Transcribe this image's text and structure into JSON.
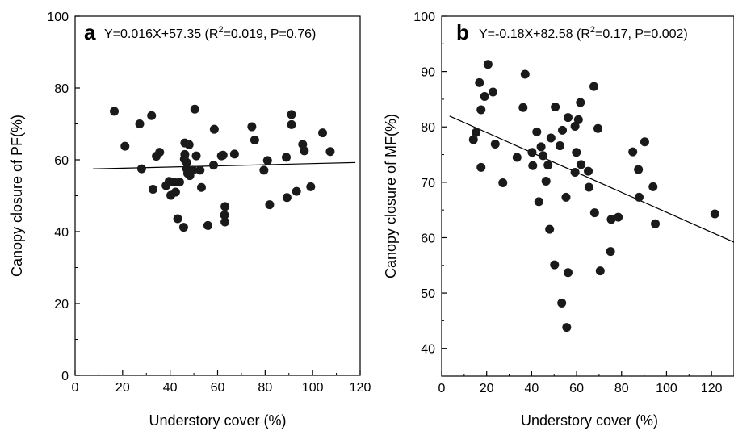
{
  "chart_data": [
    {
      "type": "scatter",
      "panel_label": "a",
      "equation": {
        "pre": "Y=0.016X+57.35 (R",
        "sup": "2",
        "post": "=0.019, P=0.76)"
      },
      "xlabel": "Understory cover (%)",
      "ylabel": "Canopy closure of PF(%)",
      "xlim": [
        0,
        120
      ],
      "ylim": [
        0,
        100
      ],
      "xticks": [
        "0",
        "20",
        "40",
        "60",
        "80",
        "100",
        "120"
      ],
      "yticks": [
        "0",
        "20",
        "40",
        "60",
        "80",
        "100"
      ],
      "grid": false,
      "fit_line": {
        "slope": 0.016,
        "intercept": 57.35,
        "x_range": [
          7.5,
          118
        ]
      },
      "points": [
        {
          "x": 16.5,
          "y": 73.5
        },
        {
          "x": 21,
          "y": 63.8
        },
        {
          "x": 27.2,
          "y": 70
        },
        {
          "x": 28,
          "y": 57.5
        },
        {
          "x": 32.2,
          "y": 72.3
        },
        {
          "x": 32.8,
          "y": 51.8
        },
        {
          "x": 34.2,
          "y": 61
        },
        {
          "x": 35.6,
          "y": 62.1
        },
        {
          "x": 38.3,
          "y": 52.8
        },
        {
          "x": 39.6,
          "y": 54
        },
        {
          "x": 40.3,
          "y": 50.1
        },
        {
          "x": 41.6,
          "y": 53.8
        },
        {
          "x": 42.3,
          "y": 51
        },
        {
          "x": 43.2,
          "y": 43.6
        },
        {
          "x": 44,
          "y": 53.8
        },
        {
          "x": 45.7,
          "y": 41.2
        },
        {
          "x": 46,
          "y": 60.2
        },
        {
          "x": 46.2,
          "y": 64.7
        },
        {
          "x": 46.2,
          "y": 61.5
        },
        {
          "x": 47,
          "y": 59.2
        },
        {
          "x": 47,
          "y": 57.5
        },
        {
          "x": 47.4,
          "y": 56.2
        },
        {
          "x": 48,
          "y": 64.2
        },
        {
          "x": 48.3,
          "y": 55.6
        },
        {
          "x": 49.6,
          "y": 57.1
        },
        {
          "x": 50.4,
          "y": 74.1
        },
        {
          "x": 51,
          "y": 61.1
        },
        {
          "x": 52.6,
          "y": 57.1
        },
        {
          "x": 53.2,
          "y": 52.3
        },
        {
          "x": 55.9,
          "y": 41.7
        },
        {
          "x": 58.3,
          "y": 58.5
        },
        {
          "x": 58.6,
          "y": 68.5
        },
        {
          "x": 61.6,
          "y": 61.1
        },
        {
          "x": 62.3,
          "y": 61.3
        },
        {
          "x": 62.9,
          "y": 44.6
        },
        {
          "x": 63.1,
          "y": 47
        },
        {
          "x": 63.1,
          "y": 42.7
        },
        {
          "x": 67.1,
          "y": 61.6
        },
        {
          "x": 74.4,
          "y": 69.2
        },
        {
          "x": 75.6,
          "y": 65.5
        },
        {
          "x": 79.5,
          "y": 57.1
        },
        {
          "x": 81,
          "y": 59.8
        },
        {
          "x": 81.9,
          "y": 47.5
        },
        {
          "x": 88.9,
          "y": 60.7
        },
        {
          "x": 89.2,
          "y": 49.5
        },
        {
          "x": 91.1,
          "y": 72.6
        },
        {
          "x": 91.1,
          "y": 69.8
        },
        {
          "x": 93.2,
          "y": 51.2
        },
        {
          "x": 95.8,
          "y": 64.3
        },
        {
          "x": 96.5,
          "y": 62.5
        },
        {
          "x": 99.2,
          "y": 52.5
        },
        {
          "x": 104.2,
          "y": 67.5
        },
        {
          "x": 107.4,
          "y": 62.3
        }
      ]
    },
    {
      "type": "scatter",
      "panel_label": "b",
      "equation": {
        "pre": "Y=-0.18X+82.58 (R",
        "sup": "2",
        "post": "=0.17, P=0.002)"
      },
      "xlabel": "Understory cover (%)",
      "ylabel": "Canopy closure of MF(%)",
      "xlim": [
        0,
        130
      ],
      "ylim": [
        35,
        100
      ],
      "xticks": [
        "0",
        "20",
        "40",
        "60",
        "80",
        "100",
        "120"
      ],
      "yticks": [
        "40",
        "50",
        "60",
        "70",
        "80",
        "90",
        "100"
      ],
      "grid": false,
      "fit_line": {
        "slope": -0.18,
        "intercept": 82.58,
        "x_range": [
          3.5,
          130
        ]
      },
      "points": [
        {
          "x": 14.1,
          "y": 77.7
        },
        {
          "x": 15.3,
          "y": 79
        },
        {
          "x": 16.8,
          "y": 88
        },
        {
          "x": 17.5,
          "y": 83.1
        },
        {
          "x": 17.5,
          "y": 72.7
        },
        {
          "x": 19.1,
          "y": 85.5
        },
        {
          "x": 20.6,
          "y": 91.3
        },
        {
          "x": 22.8,
          "y": 86.3
        },
        {
          "x": 23.8,
          "y": 76.9
        },
        {
          "x": 27.2,
          "y": 69.9
        },
        {
          "x": 33.5,
          "y": 74.5
        },
        {
          "x": 36.2,
          "y": 83.5
        },
        {
          "x": 37.1,
          "y": 89.5
        },
        {
          "x": 40.2,
          "y": 75.4
        },
        {
          "x": 40.5,
          "y": 73
        },
        {
          "x": 42.3,
          "y": 79.1
        },
        {
          "x": 43.2,
          "y": 66.5
        },
        {
          "x": 44.2,
          "y": 76.4
        },
        {
          "x": 45.1,
          "y": 74.8
        },
        {
          "x": 46.4,
          "y": 70.2
        },
        {
          "x": 47.3,
          "y": 73.1
        },
        {
          "x": 48,
          "y": 61.5
        },
        {
          "x": 48.6,
          "y": 78
        },
        {
          "x": 50.2,
          "y": 55.1
        },
        {
          "x": 50.5,
          "y": 83.6
        },
        {
          "x": 52.6,
          "y": 76.6
        },
        {
          "x": 53.4,
          "y": 48.2
        },
        {
          "x": 53.7,
          "y": 79.4
        },
        {
          "x": 55.3,
          "y": 67.3
        },
        {
          "x": 55.6,
          "y": 43.8
        },
        {
          "x": 56.2,
          "y": 81.7
        },
        {
          "x": 56.2,
          "y": 53.7
        },
        {
          "x": 59.3,
          "y": 80.1
        },
        {
          "x": 59.3,
          "y": 71.8
        },
        {
          "x": 59.9,
          "y": 75.4
        },
        {
          "x": 60.8,
          "y": 81.3
        },
        {
          "x": 61.7,
          "y": 84.4
        },
        {
          "x": 62,
          "y": 73.2
        },
        {
          "x": 65.2,
          "y": 72
        },
        {
          "x": 65.5,
          "y": 69.1
        },
        {
          "x": 67.7,
          "y": 87.3
        },
        {
          "x": 68,
          "y": 64.5
        },
        {
          "x": 69.5,
          "y": 79.7
        },
        {
          "x": 70.5,
          "y": 54
        },
        {
          "x": 75.1,
          "y": 57.5
        },
        {
          "x": 75.4,
          "y": 63.3
        },
        {
          "x": 78.5,
          "y": 63.7
        },
        {
          "x": 85,
          "y": 75.5
        },
        {
          "x": 87.5,
          "y": 72.3
        },
        {
          "x": 87.8,
          "y": 67.3
        },
        {
          "x": 90.3,
          "y": 77.3
        },
        {
          "x": 94,
          "y": 69.2
        },
        {
          "x": 95,
          "y": 62.5
        },
        {
          "x": 121.5,
          "y": 64.3
        }
      ]
    }
  ]
}
